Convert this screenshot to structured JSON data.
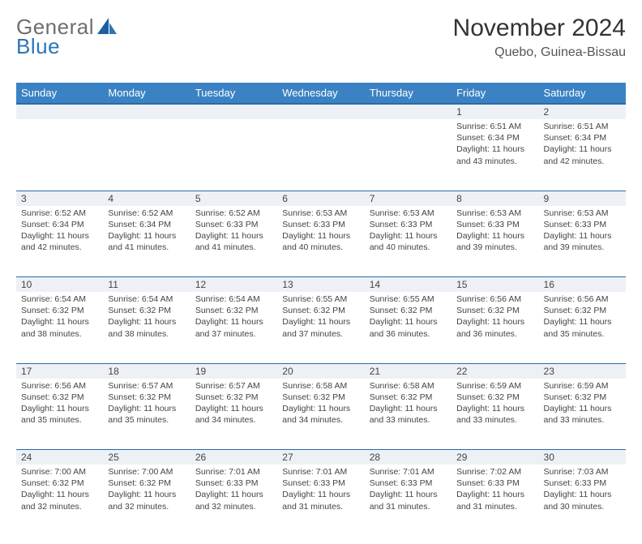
{
  "brand": {
    "part1": "General",
    "part2": "Blue"
  },
  "title": "November 2024",
  "location": "Quebo, Guinea-Bissau",
  "colors": {
    "header_bg": "#3b82c4",
    "header_border": "#2d6aa3",
    "numrow_bg": "#edf1f5",
    "text": "#444444",
    "brand_grey": "#6d6e71",
    "brand_blue": "#2d74b6"
  },
  "weekdays": [
    "Sunday",
    "Monday",
    "Tuesday",
    "Wednesday",
    "Thursday",
    "Friday",
    "Saturday"
  ],
  "weeks": [
    [
      null,
      null,
      null,
      null,
      null,
      {
        "n": "1",
        "sr": "6:51 AM",
        "ss": "6:34 PM",
        "dl": "11 hours and 43 minutes."
      },
      {
        "n": "2",
        "sr": "6:51 AM",
        "ss": "6:34 PM",
        "dl": "11 hours and 42 minutes."
      }
    ],
    [
      {
        "n": "3",
        "sr": "6:52 AM",
        "ss": "6:34 PM",
        "dl": "11 hours and 42 minutes."
      },
      {
        "n": "4",
        "sr": "6:52 AM",
        "ss": "6:34 PM",
        "dl": "11 hours and 41 minutes."
      },
      {
        "n": "5",
        "sr": "6:52 AM",
        "ss": "6:33 PM",
        "dl": "11 hours and 41 minutes."
      },
      {
        "n": "6",
        "sr": "6:53 AM",
        "ss": "6:33 PM",
        "dl": "11 hours and 40 minutes."
      },
      {
        "n": "7",
        "sr": "6:53 AM",
        "ss": "6:33 PM",
        "dl": "11 hours and 40 minutes."
      },
      {
        "n": "8",
        "sr": "6:53 AM",
        "ss": "6:33 PM",
        "dl": "11 hours and 39 minutes."
      },
      {
        "n": "9",
        "sr": "6:53 AM",
        "ss": "6:33 PM",
        "dl": "11 hours and 39 minutes."
      }
    ],
    [
      {
        "n": "10",
        "sr": "6:54 AM",
        "ss": "6:32 PM",
        "dl": "11 hours and 38 minutes."
      },
      {
        "n": "11",
        "sr": "6:54 AM",
        "ss": "6:32 PM",
        "dl": "11 hours and 38 minutes."
      },
      {
        "n": "12",
        "sr": "6:54 AM",
        "ss": "6:32 PM",
        "dl": "11 hours and 37 minutes."
      },
      {
        "n": "13",
        "sr": "6:55 AM",
        "ss": "6:32 PM",
        "dl": "11 hours and 37 minutes."
      },
      {
        "n": "14",
        "sr": "6:55 AM",
        "ss": "6:32 PM",
        "dl": "11 hours and 36 minutes."
      },
      {
        "n": "15",
        "sr": "6:56 AM",
        "ss": "6:32 PM",
        "dl": "11 hours and 36 minutes."
      },
      {
        "n": "16",
        "sr": "6:56 AM",
        "ss": "6:32 PM",
        "dl": "11 hours and 35 minutes."
      }
    ],
    [
      {
        "n": "17",
        "sr": "6:56 AM",
        "ss": "6:32 PM",
        "dl": "11 hours and 35 minutes."
      },
      {
        "n": "18",
        "sr": "6:57 AM",
        "ss": "6:32 PM",
        "dl": "11 hours and 35 minutes."
      },
      {
        "n": "19",
        "sr": "6:57 AM",
        "ss": "6:32 PM",
        "dl": "11 hours and 34 minutes."
      },
      {
        "n": "20",
        "sr": "6:58 AM",
        "ss": "6:32 PM",
        "dl": "11 hours and 34 minutes."
      },
      {
        "n": "21",
        "sr": "6:58 AM",
        "ss": "6:32 PM",
        "dl": "11 hours and 33 minutes."
      },
      {
        "n": "22",
        "sr": "6:59 AM",
        "ss": "6:32 PM",
        "dl": "11 hours and 33 minutes."
      },
      {
        "n": "23",
        "sr": "6:59 AM",
        "ss": "6:32 PM",
        "dl": "11 hours and 33 minutes."
      }
    ],
    [
      {
        "n": "24",
        "sr": "7:00 AM",
        "ss": "6:32 PM",
        "dl": "11 hours and 32 minutes."
      },
      {
        "n": "25",
        "sr": "7:00 AM",
        "ss": "6:32 PM",
        "dl": "11 hours and 32 minutes."
      },
      {
        "n": "26",
        "sr": "7:01 AM",
        "ss": "6:33 PM",
        "dl": "11 hours and 32 minutes."
      },
      {
        "n": "27",
        "sr": "7:01 AM",
        "ss": "6:33 PM",
        "dl": "11 hours and 31 minutes."
      },
      {
        "n": "28",
        "sr": "7:01 AM",
        "ss": "6:33 PM",
        "dl": "11 hours and 31 minutes."
      },
      {
        "n": "29",
        "sr": "7:02 AM",
        "ss": "6:33 PM",
        "dl": "11 hours and 31 minutes."
      },
      {
        "n": "30",
        "sr": "7:03 AM",
        "ss": "6:33 PM",
        "dl": "11 hours and 30 minutes."
      }
    ]
  ],
  "labels": {
    "sunrise": "Sunrise:",
    "sunset": "Sunset:",
    "daylight": "Daylight:"
  }
}
